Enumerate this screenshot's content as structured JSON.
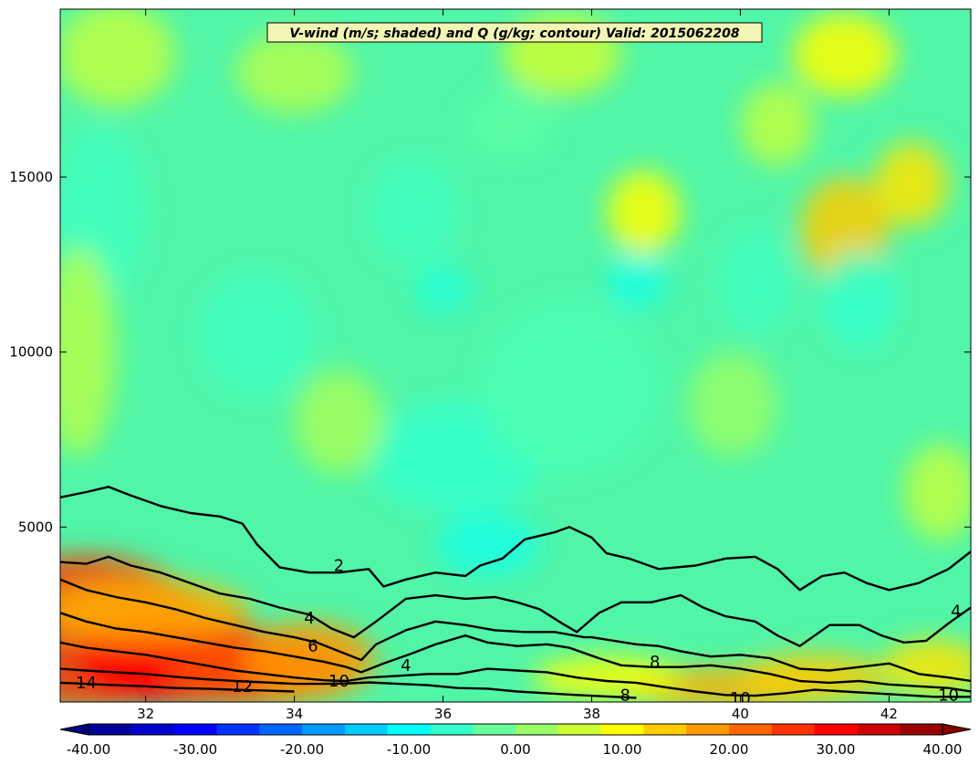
{
  "chart_data": {
    "type": "heatmap",
    "title": "V-wind (m/s; shaded) and Q (g/kg; contour) Valid: 2015062208",
    "xlim": [
      30.85,
      43.1
    ],
    "ylim": [
      0,
      19800
    ],
    "x_ticks": [
      32,
      34,
      36,
      38,
      40,
      42
    ],
    "x_tick_labels": [
      "32",
      "34",
      "36",
      "38",
      "40",
      "42"
    ],
    "y_ticks": [
      5000,
      10000,
      15000
    ],
    "y_tick_labels": [
      "5000",
      "10000",
      "15000"
    ],
    "shaded_variable": "V-wind (m/s)",
    "contour_variable": "Q (g/kg)",
    "colorbar": {
      "min": -40,
      "max": 40,
      "step": 4,
      "extend": "both",
      "tick_values": [
        -40,
        -30,
        -20,
        -10,
        0,
        10,
        20,
        30,
        40
      ],
      "tick_labels": [
        "-40.00",
        "-30.00",
        "-20.00",
        "-10.00",
        "0.00",
        "10.00",
        "20.00",
        "30.00",
        "40.00"
      ]
    },
    "contour_levels": [
      2,
      4,
      6,
      8,
      10,
      12,
      14
    ],
    "contour_labels": [
      {
        "text": "2",
        "x": 34.6,
        "y": 3900
      },
      {
        "text": "4",
        "x": 34.2,
        "y": 2400
      },
      {
        "text": "6",
        "x": 34.25,
        "y": 1600
      },
      {
        "text": "10",
        "x": 34.6,
        "y": 600
      },
      {
        "text": "12",
        "x": 33.3,
        "y": 450
      },
      {
        "text": "14",
        "x": 31.2,
        "y": 550
      },
      {
        "text": "4",
        "x": 35.5,
        "y": 1050
      },
      {
        "text": "8",
        "x": 38.85,
        "y": 1150
      },
      {
        "text": "8",
        "x": 38.45,
        "y": 200
      },
      {
        "text": "10",
        "x": 40.0,
        "y": 100
      },
      {
        "text": "10",
        "x": 42.8,
        "y": 200
      },
      {
        "text": "4",
        "x": 42.9,
        "y": 2600
      }
    ],
    "contours": [
      {
        "level": 2,
        "points": [
          [
            30.85,
            5850
          ],
          [
            31.2,
            6000
          ],
          [
            31.5,
            6150
          ],
          [
            31.8,
            5900
          ],
          [
            32.2,
            5600
          ],
          [
            32.6,
            5400
          ],
          [
            33.0,
            5300
          ],
          [
            33.3,
            5100
          ],
          [
            33.5,
            4500
          ],
          [
            33.8,
            3850
          ],
          [
            34.2,
            3700
          ],
          [
            34.6,
            3700
          ],
          [
            35.0,
            3800
          ],
          [
            35.2,
            3300
          ],
          [
            35.5,
            3500
          ],
          [
            35.9,
            3700
          ],
          [
            36.3,
            3600
          ],
          [
            36.5,
            3900
          ],
          [
            36.8,
            4100
          ],
          [
            37.1,
            4650
          ],
          [
            37.5,
            4850
          ],
          [
            37.7,
            5000
          ],
          [
            38.0,
            4700
          ],
          [
            38.2,
            4250
          ],
          [
            38.5,
            4100
          ],
          [
            38.9,
            3800
          ],
          [
            39.4,
            3900
          ],
          [
            39.8,
            4100
          ],
          [
            40.2,
            4150
          ],
          [
            40.5,
            3800
          ],
          [
            40.8,
            3200
          ],
          [
            41.1,
            3600
          ],
          [
            41.4,
            3700
          ],
          [
            41.7,
            3400
          ],
          [
            42.0,
            3200
          ],
          [
            42.4,
            3400
          ],
          [
            42.8,
            3800
          ],
          [
            43.1,
            4300
          ]
        ]
      },
      {
        "level": 4,
        "points": [
          [
            30.85,
            4000
          ],
          [
            31.2,
            3950
          ],
          [
            31.5,
            4150
          ],
          [
            31.8,
            3900
          ],
          [
            32.2,
            3700
          ],
          [
            32.6,
            3400
          ],
          [
            33.0,
            3100
          ],
          [
            33.4,
            2950
          ],
          [
            33.8,
            2700
          ],
          [
            34.2,
            2500
          ],
          [
            34.5,
            2100
          ],
          [
            34.8,
            1850
          ],
          [
            35.1,
            2300
          ],
          [
            35.5,
            2950
          ],
          [
            35.9,
            3050
          ],
          [
            36.3,
            2950
          ],
          [
            36.7,
            3000
          ],
          [
            37.0,
            2850
          ],
          [
            37.3,
            2650
          ],
          [
            37.6,
            2250
          ],
          [
            37.8,
            2000
          ],
          [
            38.1,
            2550
          ],
          [
            38.4,
            2850
          ],
          [
            38.8,
            2850
          ],
          [
            39.2,
            3050
          ],
          [
            39.5,
            2700
          ],
          [
            39.8,
            2450
          ],
          [
            40.2,
            2300
          ],
          [
            40.5,
            1900
          ],
          [
            40.8,
            1600
          ],
          [
            41.2,
            2200
          ],
          [
            41.6,
            2200
          ],
          [
            41.9,
            1900
          ],
          [
            42.2,
            1700
          ],
          [
            42.5,
            1750
          ],
          [
            42.8,
            2250
          ],
          [
            43.1,
            2700
          ]
        ]
      },
      {
        "level": 6,
        "points": [
          [
            30.85,
            3500
          ],
          [
            31.2,
            3200
          ],
          [
            31.6,
            3000
          ],
          [
            32.0,
            2850
          ],
          [
            32.4,
            2650
          ],
          [
            32.8,
            2400
          ],
          [
            33.2,
            2200
          ],
          [
            33.6,
            2000
          ],
          [
            34.0,
            1850
          ],
          [
            34.3,
            1700
          ],
          [
            34.6,
            1450
          ],
          [
            34.9,
            1200
          ],
          [
            35.1,
            1650
          ],
          [
            35.5,
            2050
          ],
          [
            35.9,
            2300
          ],
          [
            36.3,
            2200
          ],
          [
            36.7,
            2050
          ],
          [
            37.1,
            2000
          ],
          [
            37.5,
            2000
          ],
          [
            37.9,
            1850
          ],
          [
            38.0,
            1850
          ],
          [
            38.3,
            1750
          ],
          [
            38.6,
            1650
          ],
          [
            38.9,
            1600
          ],
          [
            39.2,
            1450
          ],
          [
            39.6,
            1300
          ],
          [
            40.0,
            1350
          ],
          [
            40.4,
            1250
          ],
          [
            40.8,
            950
          ],
          [
            41.2,
            900
          ],
          [
            41.6,
            1000
          ],
          [
            42.0,
            1100
          ],
          [
            42.4,
            800
          ],
          [
            42.8,
            700
          ],
          [
            43.1,
            600
          ]
        ]
      },
      {
        "level": 8,
        "points": [
          [
            30.85,
            2550
          ],
          [
            31.2,
            2300
          ],
          [
            31.6,
            2100
          ],
          [
            32.0,
            2000
          ],
          [
            32.4,
            1850
          ],
          [
            32.8,
            1700
          ],
          [
            33.2,
            1550
          ],
          [
            33.6,
            1450
          ],
          [
            34.0,
            1300
          ],
          [
            34.4,
            1150
          ],
          [
            34.7,
            1000
          ],
          [
            34.9,
            850
          ],
          [
            35.2,
            1100
          ],
          [
            35.6,
            1400
          ],
          [
            35.9,
            1650
          ],
          [
            36.3,
            1900
          ],
          [
            36.6,
            1700
          ],
          [
            37.0,
            1600
          ],
          [
            37.4,
            1650
          ],
          [
            37.7,
            1550
          ],
          [
            38.1,
            1250
          ],
          [
            38.4,
            1050
          ],
          [
            38.8,
            1000
          ],
          [
            39.2,
            1000
          ],
          [
            39.6,
            1050
          ],
          [
            40.0,
            950
          ],
          [
            40.4,
            800
          ],
          [
            40.8,
            600
          ],
          [
            41.2,
            550
          ],
          [
            41.6,
            600
          ],
          [
            42.0,
            500
          ],
          [
            42.4,
            450
          ],
          [
            42.8,
            400
          ],
          [
            43.1,
            300
          ]
        ]
      },
      {
        "level": 10,
        "points": [
          [
            30.85,
            1700
          ],
          [
            31.2,
            1550
          ],
          [
            31.6,
            1450
          ],
          [
            32.0,
            1350
          ],
          [
            32.4,
            1200
          ],
          [
            32.8,
            1050
          ],
          [
            33.2,
            900
          ],
          [
            33.6,
            800
          ],
          [
            34.0,
            700
          ],
          [
            34.4,
            620
          ],
          [
            34.7,
            600
          ],
          [
            35.0,
            700
          ],
          [
            35.4,
            750
          ],
          [
            35.8,
            800
          ],
          [
            36.2,
            800
          ],
          [
            36.6,
            950
          ],
          [
            37.0,
            900
          ],
          [
            37.4,
            850
          ],
          [
            37.8,
            700
          ],
          [
            38.2,
            600
          ],
          [
            38.6,
            550
          ],
          [
            39.0,
            420
          ],
          [
            39.4,
            300
          ],
          [
            39.8,
            200
          ],
          [
            40.2,
            180
          ],
          [
            40.6,
            250
          ],
          [
            41.0,
            350
          ],
          [
            41.4,
            300
          ],
          [
            41.8,
            250
          ],
          [
            42.2,
            200
          ],
          [
            42.6,
            150
          ],
          [
            43.1,
            150
          ]
        ]
      },
      {
        "level": 12,
        "points": [
          [
            30.85,
            950
          ],
          [
            31.2,
            900
          ],
          [
            31.6,
            850
          ],
          [
            32.0,
            800
          ],
          [
            32.4,
            720
          ],
          [
            32.8,
            650
          ],
          [
            33.2,
            600
          ],
          [
            33.6,
            560
          ],
          [
            34.0,
            520
          ],
          [
            34.4,
            520
          ],
          [
            34.7,
            530
          ],
          [
            35.0,
            560
          ],
          [
            35.4,
            520
          ],
          [
            35.8,
            480
          ],
          [
            36.2,
            400
          ],
          [
            36.6,
            380
          ],
          [
            37.0,
            300
          ],
          [
            37.4,
            250
          ],
          [
            37.8,
            200
          ],
          [
            38.2,
            160
          ],
          [
            38.6,
            120
          ]
        ]
      },
      {
        "level": 14,
        "points": [
          [
            30.85,
            550
          ],
          [
            31.2,
            520
          ],
          [
            31.6,
            480
          ],
          [
            32.0,
            450
          ],
          [
            32.4,
            400
          ],
          [
            32.8,
            380
          ],
          [
            33.2,
            350
          ],
          [
            33.6,
            330
          ],
          [
            34.0,
            300
          ]
        ]
      }
    ]
  }
}
